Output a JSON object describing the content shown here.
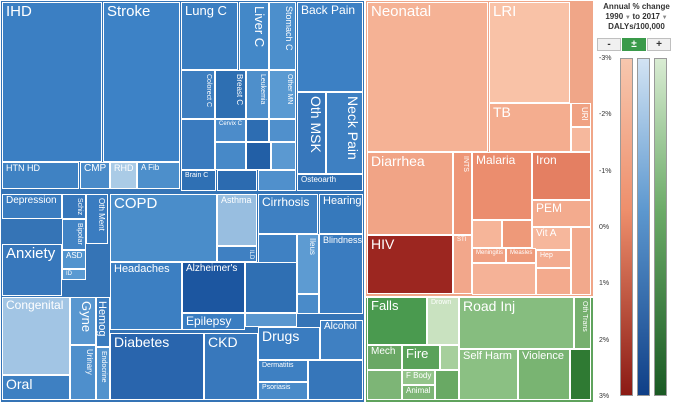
{
  "treemap": {
    "ncd": [
      {
        "label": "IHD",
        "fs": 15,
        "color": "#3b7fc3"
      },
      {
        "label": "Stroke",
        "fs": 15,
        "color": "#3d82c6"
      },
      {
        "label": "Lung C",
        "fs": 13,
        "color": "#3a7ec1"
      },
      {
        "label": "Liver C",
        "fs": 13,
        "color": "#4388c8"
      },
      {
        "label": "Stomach C",
        "fs": 9,
        "color": "#4c8fcc"
      },
      {
        "label": "Back Pain",
        "fs": 12,
        "color": "#3c80c4"
      },
      {
        "label": "Colorect C",
        "fs": 7,
        "color": "#3d7ec0"
      },
      {
        "label": "Breast C",
        "fs": 8,
        "color": "#2e6fb2"
      },
      {
        "label": "Leukemia",
        "fs": 7,
        "color": "#4e8fcb"
      },
      {
        "label": "Other MN",
        "fs": 7,
        "color": "#5a9ad2"
      },
      {
        "label": "Cervix C",
        "fs": 6,
        "color": "#4c8cca"
      },
      {
        "label": "Brain C",
        "fs": 7,
        "color": "#2f70b4"
      },
      {
        "label": "Oth MSK",
        "fs": 14,
        "color": "#3777bb"
      },
      {
        "label": "Neck Pain",
        "fs": 14,
        "color": "#3e80c2"
      },
      {
        "label": "Osteoarth",
        "fs": 8,
        "color": "#2f6fb3"
      },
      {
        "label": "HTN HD",
        "fs": 9,
        "color": "#3f82c3"
      },
      {
        "label": "CMP",
        "fs": 10,
        "color": "#4a8bc9"
      },
      {
        "label": "RHD",
        "fs": 9,
        "color": "#aacbe6"
      },
      {
        "label": "A Fib",
        "fs": 8,
        "color": "#4d8fcb"
      },
      {
        "label": "Depression",
        "fs": 10,
        "color": "#3b7dc0"
      },
      {
        "label": "Schiz",
        "fs": 7,
        "color": "#3878bc"
      },
      {
        "label": "Oth Ment",
        "fs": 8,
        "color": "#3a7cc0"
      },
      {
        "label": "Bipolar",
        "fs": 7,
        "color": "#4284c5"
      },
      {
        "label": "ASD",
        "fs": 8,
        "color": "#5294ce"
      },
      {
        "label": "ID",
        "fs": 6,
        "color": "#5a9ad2"
      },
      {
        "label": "Anxiety",
        "fs": 15,
        "color": "#3777bb"
      },
      {
        "label": "COPD",
        "fs": 15,
        "color": "#4a8dca"
      },
      {
        "label": "Asthma",
        "fs": 9,
        "color": "#98bee0"
      },
      {
        "label": "ILD",
        "fs": 6,
        "color": "#3f80c2"
      },
      {
        "label": "Cirrhosis",
        "fs": 12,
        "color": "#3e80c2"
      },
      {
        "label": "Hearing",
        "fs": 11,
        "color": "#3679bc"
      },
      {
        "label": "Blindness",
        "fs": 9,
        "color": "#3a7cc0"
      },
      {
        "label": "Ileus",
        "fs": 8,
        "color": "#5d9bd2"
      },
      {
        "label": "Headaches",
        "fs": 11,
        "color": "#3c7fc2"
      },
      {
        "label": "Alzheimer's",
        "fs": 10,
        "color": "#1c56a0"
      },
      {
        "label": "Epilepsy",
        "fs": 12,
        "color": "#3a7dc1"
      },
      {
        "label": "Congenital",
        "fs": 12,
        "color": "#a2c5e4"
      },
      {
        "label": "Gyne",
        "fs": 13,
        "color": "#5997d0"
      },
      {
        "label": "Hemog",
        "fs": 11,
        "color": "#3a7cbf"
      },
      {
        "label": "Urinary",
        "fs": 8,
        "color": "#4e8fcc"
      },
      {
        "label": "Endocrine",
        "fs": 7,
        "color": "#5393cd"
      },
      {
        "label": "Oral",
        "fs": 14,
        "color": "#3e80c2"
      },
      {
        "label": "Diabetes",
        "fs": 14,
        "color": "#2965ad"
      },
      {
        "label": "CKD",
        "fs": 14,
        "color": "#3878bc"
      },
      {
        "label": "Drugs",
        "fs": 14,
        "color": "#3a7cc0"
      },
      {
        "label": "Alcohol",
        "fs": 10,
        "color": "#3f80c2"
      },
      {
        "label": "Dermatitis",
        "fs": 7,
        "color": "#3e80c2"
      },
      {
        "label": "Psoriasis",
        "fs": 7,
        "color": "#4a8bc9"
      }
    ],
    "communicable": [
      {
        "label": "Neonatal",
        "fs": 15,
        "color": "#f5b295"
      },
      {
        "label": "LRI",
        "fs": 15,
        "color": "#f9c2a7"
      },
      {
        "label": "TB",
        "fs": 14,
        "color": "#f4ad8f"
      },
      {
        "label": "URI",
        "fs": 8,
        "color": "#f0a283"
      },
      {
        "label": "Diarrhea",
        "fs": 14,
        "color": "#f1a486"
      },
      {
        "label": "INTS",
        "fs": 7,
        "color": "#ee9677"
      },
      {
        "label": "Malaria",
        "fs": 12,
        "color": "#eb8d6e"
      },
      {
        "label": "Iron",
        "fs": 12,
        "color": "#e47f62"
      },
      {
        "label": "PEM",
        "fs": 12,
        "color": "#f3ab8e"
      },
      {
        "label": "Vit A",
        "fs": 10,
        "color": "#f6b79c"
      },
      {
        "label": "HIV",
        "fs": 14,
        "color": "#9c2620"
      },
      {
        "label": "STI",
        "fs": 6,
        "color": "#f2a78b"
      },
      {
        "label": "Meningitis",
        "fs": 6,
        "color": "#f0a082"
      },
      {
        "label": "Measles",
        "fs": 6,
        "color": "#ee9a7b"
      },
      {
        "label": "Hep",
        "fs": 7,
        "color": "#f3ac90"
      }
    ],
    "injuries": [
      {
        "label": "Falls",
        "fs": 13,
        "color": "#4a9a4f"
      },
      {
        "label": "Drown",
        "fs": 7,
        "color": "#c9e2c0"
      },
      {
        "label": "Road Inj",
        "fs": 14,
        "color": "#86bd7f"
      },
      {
        "label": "Oth Trans",
        "fs": 7,
        "color": "#76b06e"
      },
      {
        "label": "Mech",
        "fs": 10,
        "color": "#6aa865"
      },
      {
        "label": "Fire",
        "fs": 13,
        "color": "#5aa25a"
      },
      {
        "label": "F Body",
        "fs": 8,
        "color": "#93c48a"
      },
      {
        "label": "Animal",
        "fs": 8,
        "color": "#7db576"
      },
      {
        "label": "Self Harm",
        "fs": 11,
        "color": "#8bc083"
      },
      {
        "label": "Violence",
        "fs": 11,
        "color": "#79b472"
      }
    ]
  },
  "legend": {
    "title_line1": "Annual % change",
    "title_from": "1990",
    "title_to": "to 2017",
    "title_metric": "DALYs/100,000",
    "buttons": [
      "-",
      "±",
      "+"
    ],
    "ticks": [
      "-3%",
      "-2%",
      "-1%",
      "0%",
      "1%",
      "2%",
      "3%"
    ],
    "colors": {
      "red_top": "#f7c7ae",
      "red_mid": "#ee8f6c",
      "red_bottom": "#8b1a14",
      "blue_top": "#d2e3f3",
      "blue_mid": "#5d98cf",
      "blue_bottom": "#0f3f87",
      "green_top": "#d9ecd3",
      "green_mid": "#6cab68",
      "green_bottom": "#1a5a24"
    }
  }
}
